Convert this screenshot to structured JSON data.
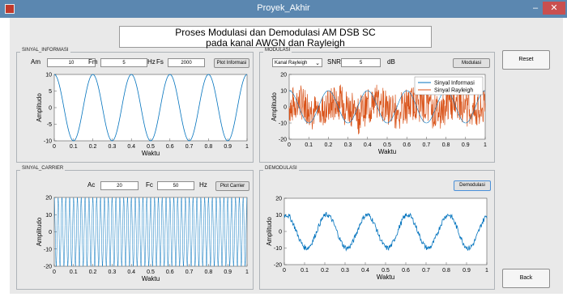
{
  "window": {
    "title": "Proyek_Akhir",
    "min_label": "–",
    "close_label": "✕"
  },
  "header": {
    "line1": "Proses Modulasi dan Demodulasi AM DSB SC",
    "line2": "pada kanal AWGN dan Rayleigh"
  },
  "info_panel": {
    "title": "SINYAL_INFORMASI",
    "am_label": "Am",
    "am_value": "10",
    "fm_label": "Fm",
    "fm_value": "5",
    "hz_label": "Hz",
    "fs_label": "Fs",
    "fs_value": "2000",
    "button": "Plot Informasi"
  },
  "mod_panel": {
    "title": "MODULASI",
    "channel_select": "Kanal Rayleigh",
    "snr_label": "SNR",
    "snr_value": "5",
    "db_label": "dB",
    "button": "Modulasi"
  },
  "carrier_panel": {
    "title": "SINYAL_CARRIER",
    "ac_label": "Ac",
    "ac_value": "20",
    "fc_label": "Fc",
    "fc_value": "50",
    "hz_label": "Hz",
    "button": "Plot Carrier"
  },
  "demod_panel": {
    "title": "DEMODULASI",
    "button": "Demodulasi"
  },
  "side_buttons": {
    "reset": "Reset",
    "back": "Back"
  },
  "colors": {
    "line_blue": "#0072bd",
    "line_orange": "#d95319"
  },
  "chart_data": [
    {
      "id": "info",
      "type": "line",
      "xlabel": "Waktu",
      "ylabel": "Amplitudo",
      "xlim": [
        0,
        1
      ],
      "ylim": [
        -10,
        10
      ],
      "xticks": [
        "0",
        "0.1",
        "0.2",
        "0.3",
        "0.4",
        "0.5",
        "0.6",
        "0.7",
        "0.8",
        "0.9",
        "1"
      ],
      "yticks": [
        "10",
        "5",
        "0",
        "-5",
        "-10"
      ],
      "series": [
        {
          "amplitude": 10,
          "frequency": 5,
          "shape": "cosine"
        }
      ]
    },
    {
      "id": "modulasi",
      "type": "line",
      "xlabel": "Waktu",
      "ylabel": "Amplitudo",
      "xlim": [
        0,
        1
      ],
      "ylim": [
        -20,
        20
      ],
      "xticks": [
        "0",
        "0.1",
        "0.2",
        "0.3",
        "0.4",
        "0.5",
        "0.6",
        "0.7",
        "0.8",
        "0.9",
        "1"
      ],
      "yticks": [
        "20",
        "10",
        "0",
        "-10",
        "-20"
      ],
      "legend_position": "top-right",
      "series": [
        {
          "name": "Sinyal Informasi",
          "amplitude": 10,
          "frequency": 5
        },
        {
          "name": "Sinyal Rayleigh",
          "amplitude_range": [
            -15,
            14
          ]
        }
      ]
    },
    {
      "id": "carrier",
      "type": "line",
      "xlabel": "Waktu",
      "ylabel": "Amplitudo",
      "xlim": [
        0,
        1
      ],
      "ylim": [
        -20,
        20
      ],
      "xticks": [
        "0",
        "0.1",
        "0.2",
        "0.3",
        "0.4",
        "0.5",
        "0.6",
        "0.7",
        "0.8",
        "0.9",
        "1"
      ],
      "yticks": [
        "20",
        "10",
        "0",
        "-10",
        "-20"
      ],
      "series": [
        {
          "amplitude": 20,
          "frequency": 50
        }
      ]
    },
    {
      "id": "demodulasi",
      "type": "line",
      "xlabel": "Waktu",
      "ylabel": "Amplitudo",
      "xlim": [
        0,
        1
      ],
      "ylim": [
        -20,
        20
      ],
      "xticks": [
        "0",
        "0.1",
        "0.2",
        "0.3",
        "0.4",
        "0.5",
        "0.6",
        "0.7",
        "0.8",
        "0.9",
        "1"
      ],
      "yticks": [
        "20",
        "10",
        "0",
        "-10",
        "-20"
      ],
      "series": [
        {
          "amplitude": 10,
          "frequency": 5
        }
      ]
    }
  ]
}
